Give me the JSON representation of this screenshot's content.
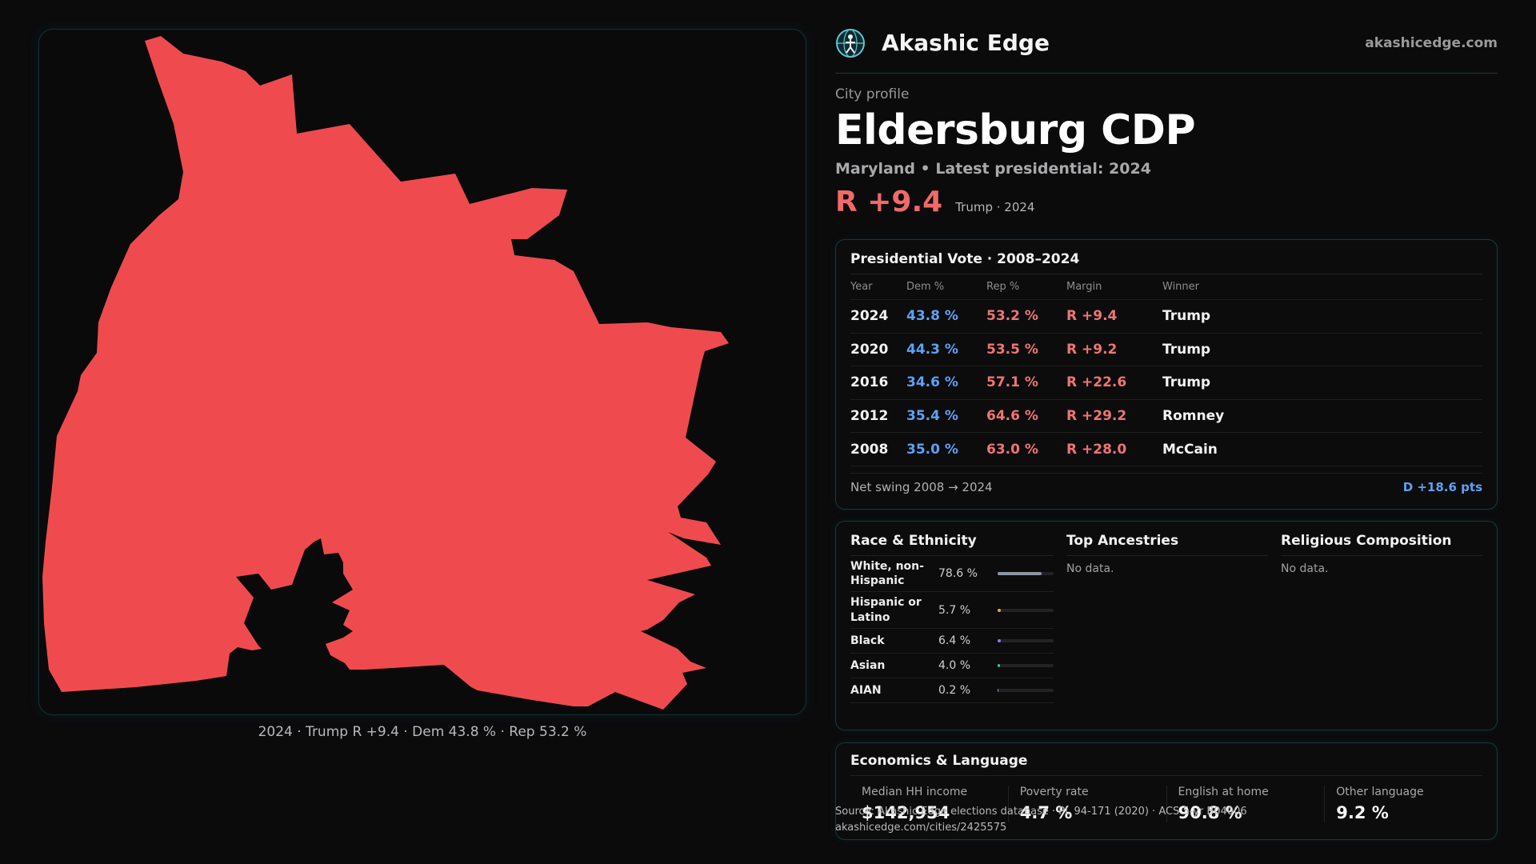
{
  "brand": {
    "name": "Akashic Edge",
    "url": "akashicedge.com",
    "logo_icon": "globe-person-icon"
  },
  "profile": {
    "kicker": "City profile",
    "title": "Eldersburg CDP",
    "subline": "Maryland • Latest presidential: 2024",
    "margin": "R +9.4",
    "margin_note": "Trump · 2024"
  },
  "map": {
    "caption": "2024 · Trump R +9.4 · Dem 43.8 % · Rep 53.2 %",
    "fill_color": "#ef4b4e"
  },
  "vote": {
    "title": "Presidential Vote · 2008–2024",
    "headers": {
      "year": "Year",
      "dem": "Dem %",
      "rep": "Rep %",
      "margin": "Margin",
      "winner": "Winner"
    },
    "rows": [
      {
        "year": "2024",
        "dem": "43.8 %",
        "rep": "53.2 %",
        "margin": "R +9.4",
        "winner": "Trump"
      },
      {
        "year": "2020",
        "dem": "44.3 %",
        "rep": "53.5 %",
        "margin": "R +9.2",
        "winner": "Trump"
      },
      {
        "year": "2016",
        "dem": "34.6 %",
        "rep": "57.1 %",
        "margin": "R +22.6",
        "winner": "Trump"
      },
      {
        "year": "2012",
        "dem": "35.4 %",
        "rep": "64.6 %",
        "margin": "R +29.2",
        "winner": "Romney"
      },
      {
        "year": "2008",
        "dem": "35.0 %",
        "rep": "63.0 %",
        "margin": "R +28.0",
        "winner": "McCain"
      }
    ],
    "swing_label": "Net swing 2008 → 2024",
    "swing_value": "D +18.6 pts"
  },
  "demographics": {
    "race_title": "Race & Ethnicity",
    "race": [
      {
        "label": "White, non-Hispanic",
        "pct": "78.6 %",
        "share": 0.786,
        "color": "#8a95a5"
      },
      {
        "label": "Hispanic or Latino",
        "pct": "5.7 %",
        "share": 0.057,
        "color": "#e8a33c"
      },
      {
        "label": "Black",
        "pct": "6.4 %",
        "share": 0.064,
        "color": "#8a7bf0"
      },
      {
        "label": "Asian",
        "pct": "4.0 %",
        "share": 0.04,
        "color": "#3fbf8a"
      },
      {
        "label": "AIAN",
        "pct": "0.2 %",
        "share": 0.002,
        "color": "#c07ad0"
      }
    ],
    "ancestry_title": "Top Ancestries",
    "ancestry_empty": "No data.",
    "religion_title": "Religious Composition",
    "religion_empty": "No data."
  },
  "economics": {
    "title": "Economics & Language",
    "items": [
      {
        "label": "Median HH income",
        "value": "$142,954"
      },
      {
        "label": "Poverty rate",
        "value": "4.7 %"
      },
      {
        "label": "English at home",
        "value": "90.8 %"
      },
      {
        "label": "Other language",
        "value": "9.2 %"
      }
    ]
  },
  "source": {
    "line1": "Source: Akashic Edge elections database · PL 94-171 (2020) · ACS 5-yr B04006",
    "line2": "akashicedge.com/cities/2425575"
  }
}
